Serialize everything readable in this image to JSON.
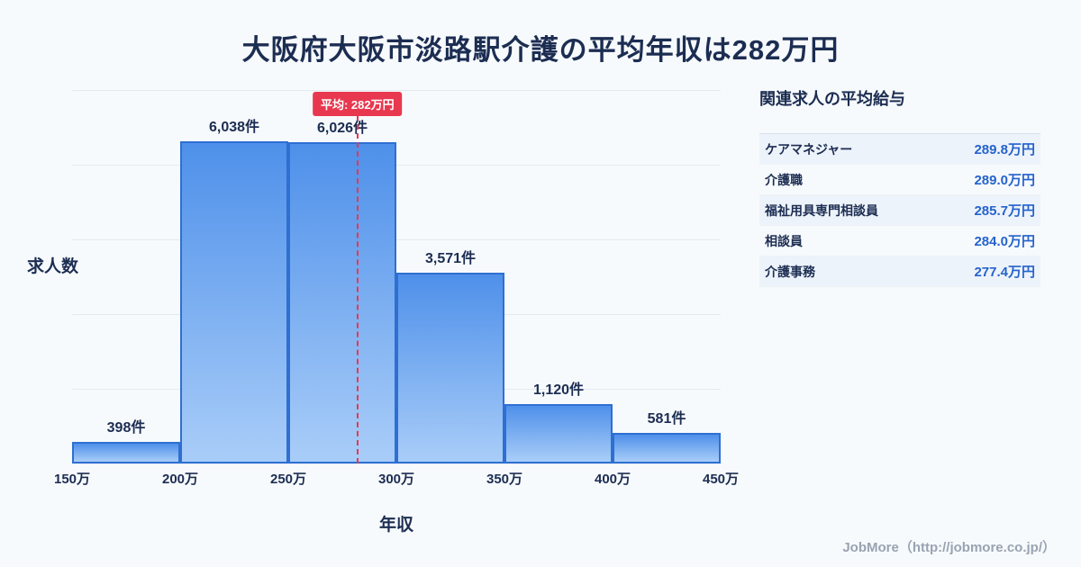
{
  "theme": {
    "navy": "#1c2d52",
    "red": "#e8384f",
    "vblue": "#2563cc",
    "bar_top": "#4e90ea",
    "bar_bottom": "#a9cdf8",
    "bar_border": "#2f6fd2",
    "bg": "#f7fafc"
  },
  "chart_data": {
    "type": "bar",
    "subtype": "histogram",
    "title": "大阪府大阪市淡路駅介護の平均年収は282万円",
    "xlabel": "年収",
    "ylabel": "求人数",
    "bin_edges_labels": [
      "150万",
      "200万",
      "250万",
      "300万",
      "350万",
      "400万",
      "450万"
    ],
    "bin_edges_values": [
      150,
      200,
      250,
      300,
      350,
      400,
      450
    ],
    "values": [
      398,
      6038,
      6026,
      3571,
      1120,
      581
    ],
    "bar_labels": [
      "398件",
      "6,038件",
      "6,026件",
      "3,571件",
      "1,120件",
      "581件"
    ],
    "ylim": [
      0,
      7000
    ],
    "grid_divisions": 5,
    "x_range": [
      150,
      450
    ],
    "mean_line": {
      "value": 282,
      "label": "平均: 282万円"
    },
    "legend": "none",
    "grid": "horizontal"
  },
  "side_panel": {
    "title": "関連求人の平均給与",
    "rows": [
      {
        "label": "ケアマネジャー",
        "value": "289.8万円"
      },
      {
        "label": "介護職",
        "value": "289.0万円"
      },
      {
        "label": "福祉用具専門相談員",
        "value": "285.7万円"
      },
      {
        "label": "相談員",
        "value": "284.0万円"
      },
      {
        "label": "介護事務",
        "value": "277.4万円"
      }
    ]
  },
  "footer": {
    "credit": "JobMore（http://jobmore.co.jp/）"
  }
}
